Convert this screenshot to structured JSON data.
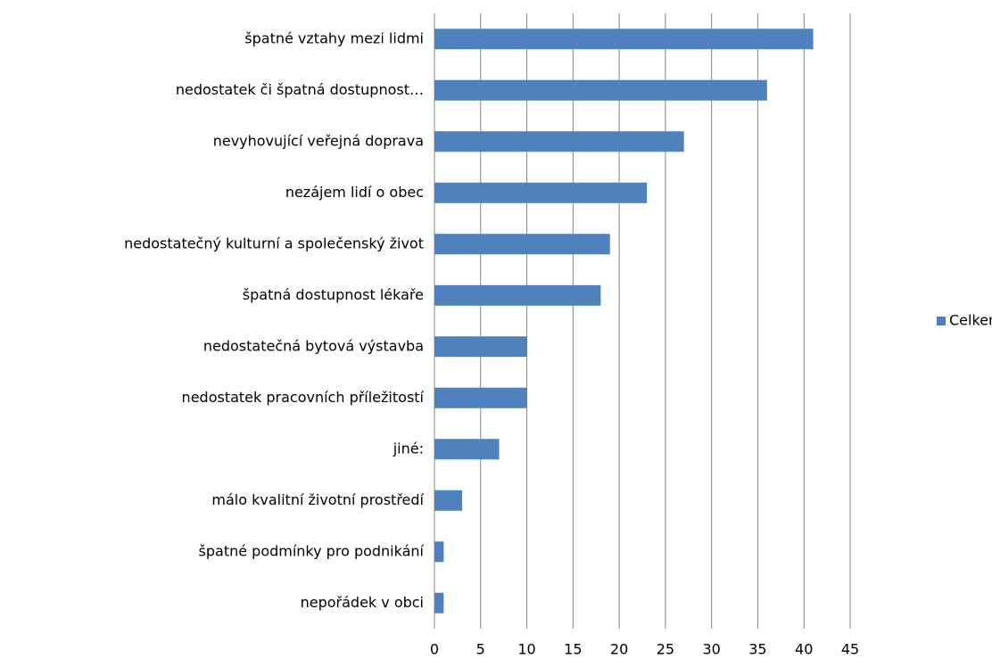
{
  "chart_data": {
    "type": "bar",
    "orientation": "horizontal",
    "categories": [
      "špatné vztahy mezi lidmi",
      "nedostatek či špatná dostupnost…",
      "nevyhovující veřejná doprava",
      "nezájem lidí o obec",
      "nedostatečný kulturní a společenský život",
      "špatná dostupnost lékaře",
      "nedostatečná bytová výstavba",
      "nedostatek pracovních příležitostí",
      "jiné:",
      "málo kvalitní životní prostředí",
      "špatné podmínky pro podnikání",
      "nepořádek v obci"
    ],
    "series": [
      {
        "name": "Celkem",
        "color": "#4f81bd",
        "values": [
          41,
          36,
          27,
          23,
          19,
          18,
          10,
          10,
          7,
          3,
          1,
          1
        ]
      }
    ],
    "xlim": [
      0,
      45
    ],
    "xticks": [
      0,
      5,
      10,
      15,
      20,
      25,
      30,
      35,
      40,
      45
    ],
    "grid": true,
    "legend": "right"
  }
}
